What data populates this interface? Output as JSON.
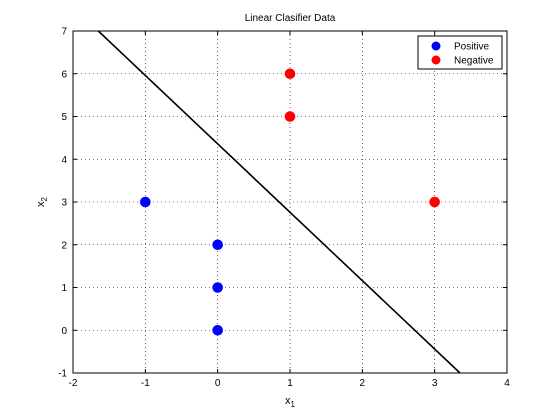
{
  "chart_data": {
    "type": "scatter",
    "title": "Linear Clasifier Data",
    "xlabel": {
      "base": "x",
      "sub": "1"
    },
    "ylabel": {
      "base": "x",
      "sub": "2"
    },
    "xlim": [
      -2,
      4
    ],
    "ylim": [
      -1,
      7
    ],
    "xticks": [
      -2,
      -1,
      0,
      1,
      2,
      3,
      4
    ],
    "yticks": [
      -1,
      0,
      1,
      2,
      3,
      4,
      5,
      6,
      7
    ],
    "grid": true,
    "legend_position": "top-right",
    "series": [
      {
        "name": "Positive",
        "color": "#0000ff",
        "points": [
          [
            -1,
            3
          ],
          [
            0,
            2
          ],
          [
            0,
            1
          ],
          [
            0,
            0
          ]
        ]
      },
      {
        "name": "Negative",
        "color": "#ff0000",
        "points": [
          [
            1,
            6
          ],
          [
            1,
            5
          ],
          [
            3,
            3
          ]
        ]
      }
    ],
    "decision_line": {
      "color": "#000000",
      "points": [
        [
          -1.65,
          7
        ],
        [
          3.35,
          -1
        ]
      ]
    }
  }
}
